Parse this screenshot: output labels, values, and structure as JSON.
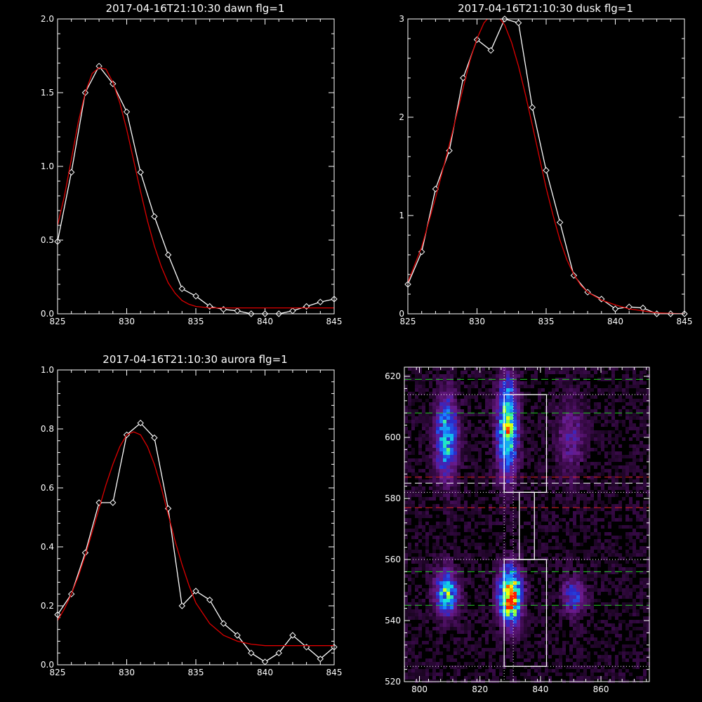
{
  "chart_data": [
    {
      "type": "line",
      "title": "2017-04-16T21:10:30 dawn flg=1",
      "xlim": [
        825,
        845
      ],
      "ylim": [
        0,
        2.0
      ],
      "xticks": [
        825,
        830,
        835,
        840,
        845
      ],
      "xtick_labels": [
        "825",
        "830",
        "835",
        "840",
        "845"
      ],
      "yticks": [
        0,
        0.5,
        1.0,
        1.5,
        2.0
      ],
      "ytick_labels": [
        "0.0",
        "0.5",
        "1.0",
        "1.5",
        "2.0"
      ],
      "series": [
        {
          "color": "#ffffff",
          "marker": "diamond",
          "x": [
            825,
            826,
            827,
            828,
            829,
            830,
            831,
            832,
            833,
            834,
            835,
            836,
            837,
            838,
            839,
            840,
            841,
            842,
            843,
            844,
            845
          ],
          "y": [
            0.49,
            0.96,
            1.5,
            1.68,
            1.56,
            1.37,
            0.96,
            0.66,
            0.4,
            0.17,
            0.12,
            0.05,
            0.03,
            0.02,
            0.0,
            0.0,
            0.0,
            0.02,
            0.05,
            0.08,
            0.1
          ]
        },
        {
          "color": "#dd0000",
          "marker": "none",
          "x": [
            825,
            825.5,
            826,
            826.5,
            827,
            827.5,
            828,
            828.5,
            829,
            829.5,
            830,
            830.5,
            831,
            831.5,
            832,
            832.5,
            833,
            833.5,
            834,
            834.5,
            835,
            836,
            837,
            838,
            840,
            845
          ],
          "y": [
            0.6,
            0.8,
            1.05,
            1.3,
            1.5,
            1.63,
            1.67,
            1.66,
            1.57,
            1.43,
            1.25,
            1.04,
            0.83,
            0.63,
            0.46,
            0.32,
            0.21,
            0.14,
            0.09,
            0.065,
            0.05,
            0.04,
            0.04,
            0.04,
            0.04,
            0.04
          ]
        }
      ]
    },
    {
      "type": "line",
      "title": "2017-04-16T21:10:30 dusk flg=1",
      "xlim": [
        825,
        845
      ],
      "ylim": [
        0,
        3
      ],
      "xticks": [
        825,
        830,
        835,
        840,
        845
      ],
      "xtick_labels": [
        "825",
        "830",
        "835",
        "840",
        "845"
      ],
      "yticks": [
        0,
        1,
        2,
        3
      ],
      "ytick_labels": [
        "0",
        "1",
        "2",
        "3"
      ],
      "series": [
        {
          "color": "#ffffff",
          "marker": "diamond",
          "x": [
            825,
            826,
            827,
            828,
            829,
            830,
            831,
            832,
            833,
            834,
            835,
            836,
            837,
            838,
            839,
            840,
            841,
            842,
            843,
            844,
            845
          ],
          "y": [
            0.3,
            0.63,
            1.27,
            1.66,
            2.4,
            2.79,
            2.68,
            3.0,
            2.96,
            2.1,
            1.46,
            0.93,
            0.39,
            0.22,
            0.15,
            0.05,
            0.07,
            0.06,
            0.0,
            0.0,
            0.0
          ]
        },
        {
          "color": "#dd0000",
          "marker": "none",
          "x": [
            825,
            826,
            827,
            828,
            829,
            829.5,
            830,
            830.5,
            831,
            831.5,
            832,
            832.5,
            833,
            833.5,
            834,
            834.5,
            835,
            835.5,
            836,
            836.5,
            837,
            837.5,
            838,
            839,
            840,
            841,
            842,
            843,
            845
          ],
          "y": [
            0.32,
            0.68,
            1.18,
            1.72,
            2.3,
            2.58,
            2.8,
            2.96,
            3.04,
            3.03,
            2.94,
            2.76,
            2.52,
            2.23,
            1.92,
            1.6,
            1.28,
            1.0,
            0.75,
            0.55,
            0.4,
            0.29,
            0.22,
            0.14,
            0.09,
            0.05,
            0.03,
            0.01,
            0.0
          ]
        }
      ]
    },
    {
      "type": "line",
      "title": "2017-04-16T21:10:30 aurora flg=1",
      "xlim": [
        825,
        845
      ],
      "ylim": [
        0,
        1.0
      ],
      "xticks": [
        825,
        830,
        835,
        840,
        845
      ],
      "xtick_labels": [
        "825",
        "830",
        "835",
        "840",
        "845"
      ],
      "yticks": [
        0,
        0.2,
        0.4,
        0.6,
        0.8,
        1.0
      ],
      "ytick_labels": [
        "0.0",
        "0.2",
        "0.4",
        "0.6",
        "0.8",
        "1.0"
      ],
      "series": [
        {
          "color": "#ffffff",
          "marker": "diamond",
          "x": [
            825,
            826,
            827,
            828,
            829,
            830,
            831,
            832,
            833,
            834,
            835,
            836,
            837,
            838,
            839,
            840,
            841,
            842,
            843,
            844,
            845
          ],
          "y": [
            0.17,
            0.24,
            0.38,
            0.55,
            0.55,
            0.78,
            0.82,
            0.77,
            0.53,
            0.2,
            0.25,
            0.22,
            0.14,
            0.1,
            0.04,
            0.01,
            0.04,
            0.1,
            0.06,
            0.02,
            0.06
          ]
        },
        {
          "color": "#dd0000",
          "marker": "none",
          "x": [
            825,
            825.5,
            826,
            826.5,
            827,
            827.5,
            828,
            828.5,
            829,
            829.5,
            830,
            830.5,
            831,
            831.5,
            832,
            832.5,
            833,
            833.5,
            834,
            834.5,
            835,
            836,
            837,
            838,
            839,
            840,
            841,
            845
          ],
          "y": [
            0.15,
            0.19,
            0.24,
            0.3,
            0.37,
            0.45,
            0.53,
            0.61,
            0.68,
            0.74,
            0.78,
            0.79,
            0.78,
            0.74,
            0.68,
            0.6,
            0.51,
            0.42,
            0.34,
            0.27,
            0.21,
            0.14,
            0.1,
            0.08,
            0.07,
            0.065,
            0.065,
            0.065
          ]
        }
      ]
    },
    {
      "type": "heatmap",
      "title": "",
      "xlim": [
        795,
        876
      ],
      "ylim": [
        520,
        623
      ],
      "xticks": [
        800,
        820,
        840,
        860
      ],
      "xtick_labels": [
        "800",
        "820",
        "840",
        "860"
      ],
      "yticks": [
        520,
        540,
        560,
        580,
        600,
        620
      ],
      "ytick_labels": [
        "520",
        "540",
        "560",
        "580",
        "600",
        "620"
      ],
      "colormap": [
        "#000000",
        "#3a0a4a",
        "#6a1a8a",
        "#2a2acc",
        "#1a7aff",
        "#10e0e0",
        "#80ff40",
        "#ffff00",
        "#ff2000"
      ],
      "blobs": [
        {
          "x": 809,
          "y": 600,
          "sx": 2.5,
          "sy": 9,
          "peak": 0.55
        },
        {
          "x": 829,
          "y": 603,
          "sx": 2.2,
          "sy": 11,
          "peak": 0.72
        },
        {
          "x": 850,
          "y": 600,
          "sx": 3.0,
          "sy": 9,
          "peak": 0.2
        },
        {
          "x": 809,
          "y": 549,
          "sx": 2.5,
          "sy": 5,
          "peak": 0.6
        },
        {
          "x": 830,
          "y": 548,
          "sx": 2.5,
          "sy": 6,
          "peak": 1.0
        },
        {
          "x": 851,
          "y": 548,
          "sx": 2.5,
          "sy": 4,
          "peak": 0.35
        }
      ],
      "hlines": [
        {
          "y": 619,
          "color": "#22cc22",
          "style": "dashed"
        },
        {
          "y": 614,
          "color": "#ffffff",
          "style": "dotted"
        },
        {
          "y": 608,
          "color": "#22cc22",
          "style": "dashed"
        },
        {
          "y": 587,
          "color": "#dd2222",
          "style": "dashed"
        },
        {
          "y": 585,
          "color": "#ffffff",
          "style": "dashed"
        },
        {
          "y": 582,
          "color": "#ffffff",
          "style": "dotted"
        },
        {
          "y": 577,
          "color": "#dd2222",
          "style": "dashed"
        },
        {
          "y": 560,
          "color": "#ffffff",
          "style": "dotted"
        },
        {
          "y": 556,
          "color": "#22cc22",
          "style": "dashed"
        },
        {
          "y": 545,
          "color": "#22cc22",
          "style": "dashed"
        },
        {
          "y": 525,
          "color": "#ffffff",
          "style": "dotted"
        }
      ],
      "vlines": [
        {
          "x": 828,
          "color": "#ffffff",
          "style": "dotted"
        },
        {
          "x": 831,
          "color": "#ffffff",
          "style": "dotted"
        }
      ],
      "boxes": [
        {
          "x0": 828,
          "x1": 842,
          "y0": 582,
          "y1": 614
        },
        {
          "x0": 833,
          "x1": 838,
          "y0": 560,
          "y1": 582
        },
        {
          "x0": 828,
          "x1": 842,
          "y0": 525,
          "y1": 560
        }
      ]
    }
  ]
}
